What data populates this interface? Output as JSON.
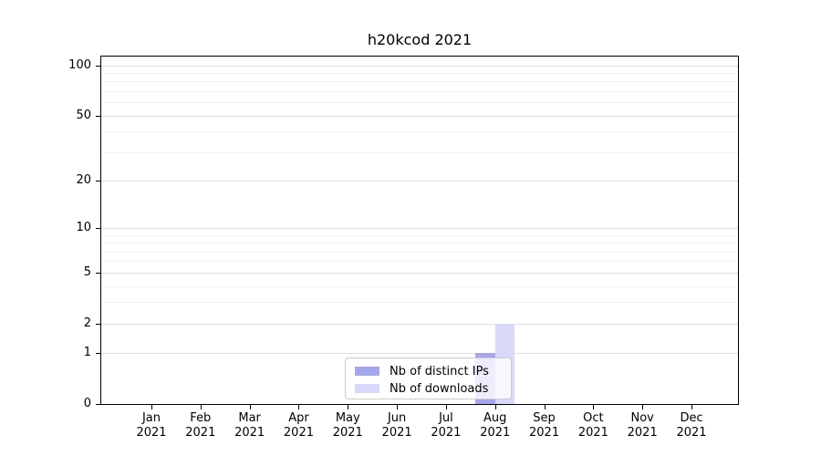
{
  "title": "h20kcod 2021",
  "chart_data": {
    "type": "bar",
    "title": "h20kcod 2021",
    "categories": [
      "Jan",
      "Feb",
      "Mar",
      "Apr",
      "May",
      "Jun",
      "Jul",
      "Aug",
      "Sep",
      "Oct",
      "Nov",
      "Dec"
    ],
    "xtick_labels": [
      [
        "Jan",
        "2021"
      ],
      [
        "Feb",
        "2021"
      ],
      [
        "Mar",
        "2021"
      ],
      [
        "Apr",
        "2021"
      ],
      [
        "May",
        "2021"
      ],
      [
        "Jun",
        "2021"
      ],
      [
        "Jul",
        "2021"
      ],
      [
        "Aug",
        "2021"
      ],
      [
        "Sep",
        "2021"
      ],
      [
        "Oct",
        "2021"
      ],
      [
        "Nov",
        "2021"
      ],
      [
        "Dec",
        "2021"
      ]
    ],
    "series": [
      {
        "name": "Nb of distinct IPs",
        "color": "#a6a6ef",
        "values": [
          0,
          0,
          0,
          0,
          0,
          0,
          0,
          1,
          0,
          0,
          0,
          0
        ]
      },
      {
        "name": "Nb of downloads",
        "color": "#d8d8f8",
        "values": [
          0,
          0,
          0,
          0,
          0,
          0,
          0,
          2,
          0,
          0,
          0,
          0
        ]
      }
    ],
    "xlabel": "",
    "ylabel": "",
    "yscale": "log1p",
    "yticks": [
      0,
      1,
      2,
      5,
      10,
      20,
      50,
      100
    ],
    "minor_grid_values": [
      3,
      4,
      6,
      7,
      8,
      9,
      30,
      40,
      60,
      70,
      80,
      90
    ],
    "ylim": [
      0,
      113
    ],
    "grid": true,
    "legend_position": "lower center"
  },
  "colors": {
    "major_grid": "#dedede",
    "minor_grid": "#f0f0f0",
    "spine": "#000000",
    "legend_border": "#cccccc"
  }
}
